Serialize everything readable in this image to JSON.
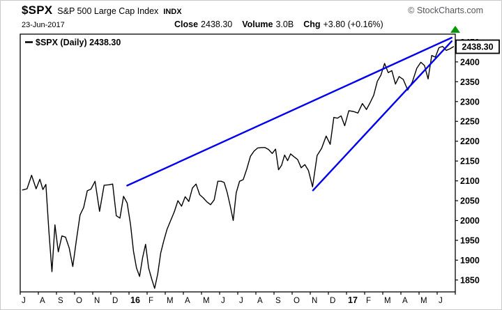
{
  "header": {
    "symbol": "$SPX",
    "index_name": "S&P 500 Large Cap Index",
    "exchange": "INDX",
    "copyright": "© StockCharts.com",
    "date": "23-Jun-2017",
    "close_label": "Close",
    "close_value": "2438.30",
    "volume_label": "Volume",
    "volume_value": "3.0B",
    "chg_label": "Chg",
    "chg_value": "+3.80 (+0.16%)",
    "chg_direction": "up"
  },
  "legend": {
    "text": "$SPX (Daily) 2438.30"
  },
  "price_box": {
    "value": "2438.30"
  },
  "colors": {
    "price_line": "#000000",
    "trendline": "#0000ee",
    "chg_up": "#009900",
    "copyright_gray": "#55555f"
  },
  "chart_data": {
    "type": "line",
    "title": "$SPX (Daily)",
    "symbol": "$SPX",
    "timeframe": "Daily",
    "last_price": 2438.3,
    "x_axis": {
      "labels": [
        "J",
        "A",
        "S",
        "O",
        "N",
        "D",
        "16",
        "F",
        "M",
        "A",
        "M",
        "J",
        "J",
        "A",
        "S",
        "O",
        "N",
        "D",
        "17",
        "F",
        "M",
        "A",
        "M",
        "J"
      ],
      "bold_labels": [
        "16",
        "17"
      ],
      "start": "Jul-2015",
      "end": "Jun-2017"
    },
    "y_axis": {
      "min": 1820,
      "max": 2470,
      "ticks": [
        1850,
        1900,
        1950,
        2000,
        2050,
        2100,
        2150,
        2200,
        2250,
        2300,
        2350,
        2400,
        2450
      ]
    },
    "series": [
      {
        "name": "$SPX",
        "color": "#000000",
        "values_by_month": [
          [
            2077,
            2080,
            2114,
            2080
          ],
          [
            2104,
            2078,
            2091,
            1971,
            1871,
            1989
          ],
          [
            1921,
            1961,
            1958,
            1931,
            1884
          ],
          [
            1951,
            2014,
            2033,
            2075,
            2079
          ],
          [
            2099,
            2023,
            2089,
            2090
          ],
          [
            2092,
            2012,
            2006,
            2061,
            2044
          ],
          [
            1990,
            1922,
            1880,
            1859,
            1906,
            1940
          ],
          [
            1880,
            1853,
            1829,
            1865,
            1918,
            1948
          ],
          [
            1978,
            2000,
            2022,
            2050,
            2036
          ],
          [
            2060,
            2048,
            2082,
            2092,
            2065
          ],
          [
            2057,
            2047,
            2040,
            2052,
            2099
          ],
          [
            2099,
            2096,
            2071,
            2037,
            2000,
            2070
          ],
          [
            2099,
            2103,
            2130,
            2162,
            2175
          ],
          [
            2183,
            2184,
            2184,
            2179,
            2169
          ],
          [
            2180,
            2128,
            2139,
            2165,
            2151,
            2168
          ],
          [
            2161,
            2154,
            2133,
            2141,
            2126
          ],
          [
            2085,
            2164,
            2182,
            2213
          ],
          [
            2192,
            2260,
            2258,
            2264,
            2239
          ],
          [
            2277,
            2275,
            2271,
            2295
          ],
          [
            2280,
            2297,
            2316,
            2351,
            2367
          ],
          [
            2396,
            2373,
            2378,
            2344,
            2363
          ],
          [
            2356,
            2329,
            2349,
            2384
          ],
          [
            2399,
            2391,
            2357,
            2416,
            2412
          ],
          [
            2436,
            2439,
            2429,
            2433,
            2438.3
          ]
        ]
      }
    ],
    "trendlines": [
      {
        "name": "upper-trendline",
        "from_month": 5.9,
        "from_price": 2088,
        "to_month": 23.8,
        "to_price": 2461
      },
      {
        "name": "lower-trendline",
        "from_month": 16.15,
        "from_price": 2076,
        "to_month": 23.8,
        "to_price": 2452
      }
    ]
  }
}
